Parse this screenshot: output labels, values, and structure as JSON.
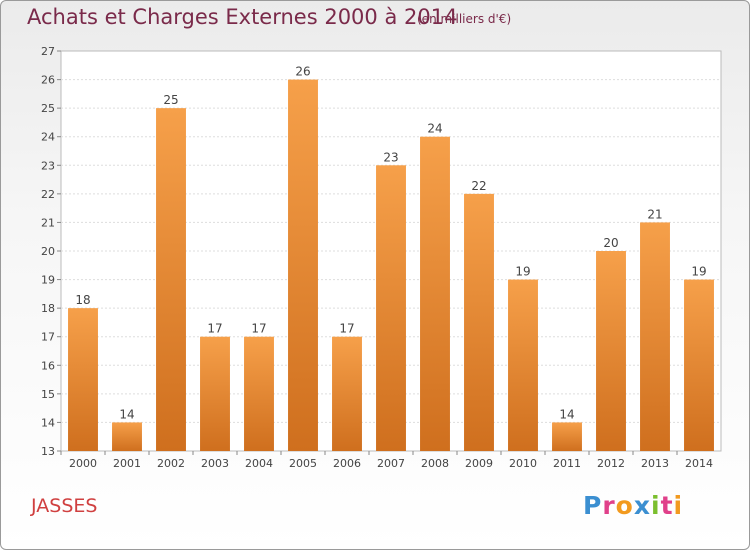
{
  "header": {
    "title": "Achats et Charges Externes 2000 à 2014",
    "subtitle": "(en milliers d'€)"
  },
  "footer": {
    "commune": "JASSES",
    "logo": "Proxiti"
  },
  "colors": {
    "bar_light": "#f6a04a",
    "bar_dark": "#cf6f1e",
    "title": "#7a2a4a",
    "commune": "#d04040"
  },
  "logo_colors": [
    "#3b8fd1",
    "#e0408a",
    "#f29a1f",
    "#3b8fd1",
    "#7bbf2e",
    "#e0408a",
    "#f29a1f"
  ],
  "chart_data": {
    "type": "bar",
    "title": "Achats et Charges Externes 2000 à 2014",
    "subtitle": "(en milliers d'€)",
    "categories": [
      "2000",
      "2001",
      "2002",
      "2003",
      "2004",
      "2005",
      "2006",
      "2007",
      "2008",
      "2009",
      "2010",
      "2011",
      "2012",
      "2013",
      "2014"
    ],
    "values": [
      18,
      14,
      25,
      17,
      17,
      26,
      17,
      23,
      24,
      22,
      19,
      14,
      20,
      21,
      19
    ],
    "ylim": [
      13,
      27
    ],
    "yticks": [
      13,
      14,
      15,
      16,
      17,
      18,
      19,
      20,
      21,
      22,
      23,
      24,
      25,
      26,
      27
    ],
    "grid": true,
    "legend": "none"
  }
}
